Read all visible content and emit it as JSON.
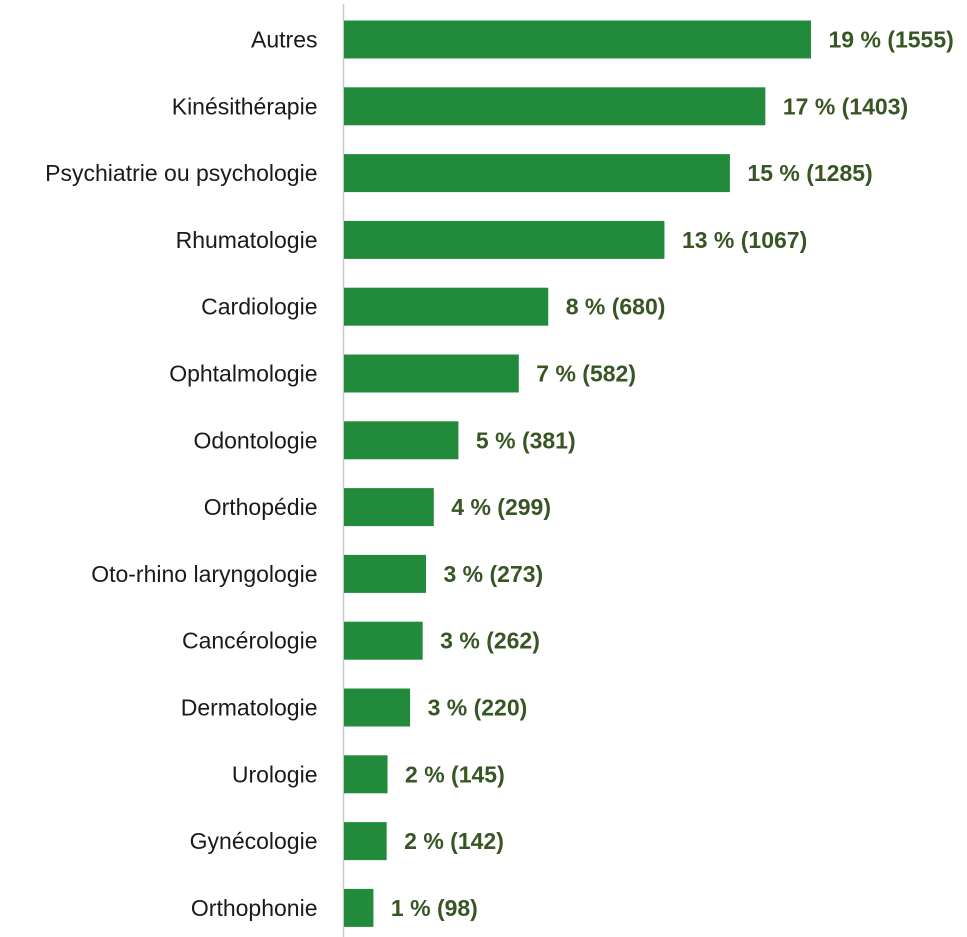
{
  "chart_data": {
    "type": "bar",
    "orientation": "horizontal",
    "categories": [
      "Autres",
      "Kinésithérapie",
      "Psychiatrie ou psychologie",
      "Rhumatologie",
      "Cardiologie",
      "Ophtalmologie",
      "Odontologie",
      "Orthopédie",
      "Oto-rhino laryngologie",
      "Cancérologie",
      "Dermatologie",
      "Urologie",
      "Gynécologie",
      "Orthophonie"
    ],
    "values": [
      1555,
      1403,
      1285,
      1067,
      680,
      582,
      381,
      299,
      273,
      262,
      220,
      145,
      142,
      98
    ],
    "percentages": [
      19,
      17,
      15,
      13,
      8,
      7,
      5,
      4,
      3,
      3,
      3,
      2,
      2,
      1
    ],
    "data_labels": [
      "19 % (1555)",
      "17 % (1403)",
      "15 % (1285)",
      "13 % (1067)",
      "8 % (680)",
      "7 % (582)",
      "5 % (381)",
      "4 % (299)",
      "3 % (273)",
      "3 % (262)",
      "3 % (220)",
      "2 % (145)",
      "2 % (142)",
      "1 % (98)"
    ],
    "title": "",
    "xlabel": "",
    "ylabel": "",
    "xlim": [
      0,
      1555
    ],
    "grid": false,
    "legend": "none",
    "bar_color": "#228B3B",
    "label_color": "#375623",
    "axis_color": "#C8C8C8"
  }
}
